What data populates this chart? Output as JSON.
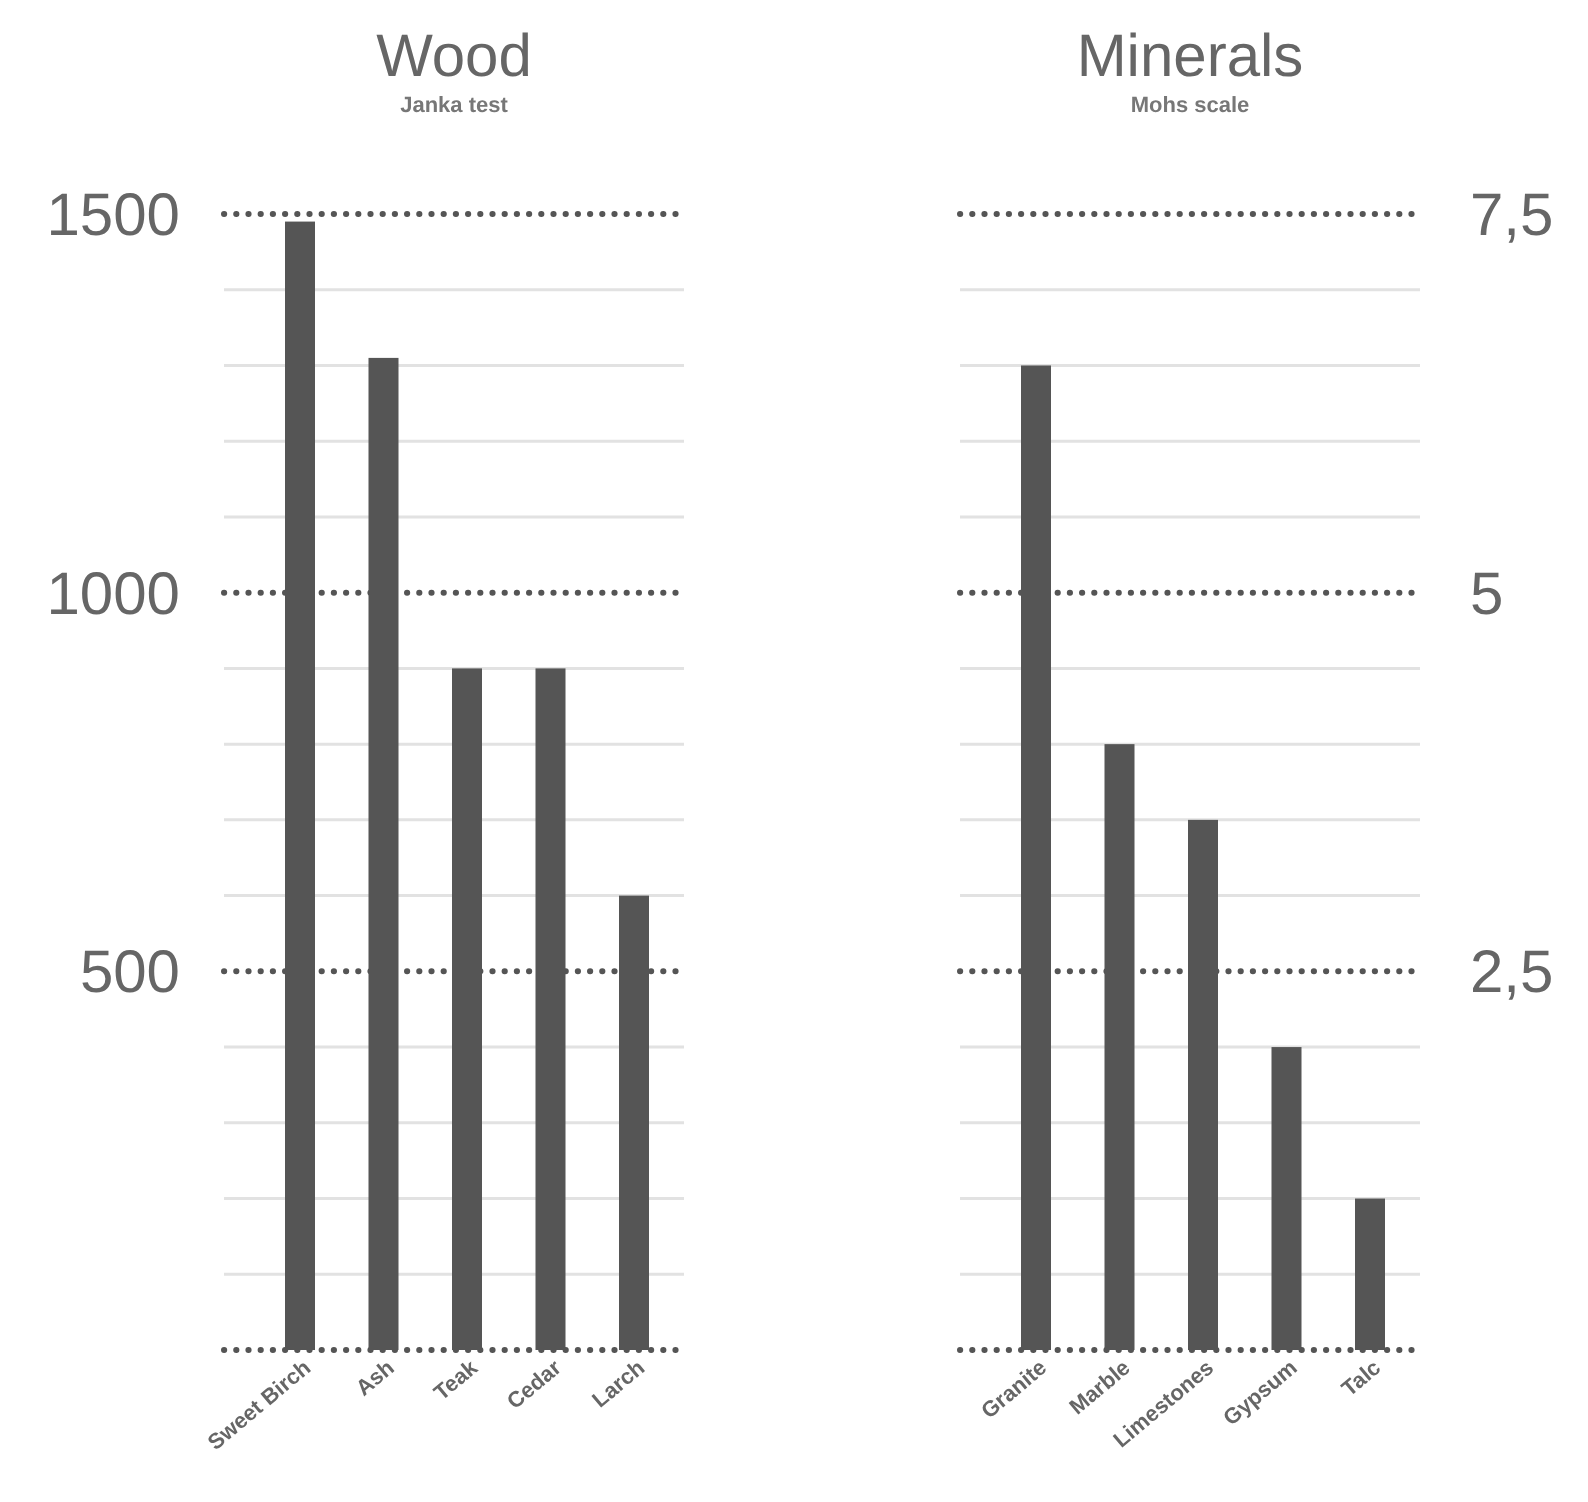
{
  "chart_data": [
    {
      "type": "bar",
      "title": "Wood",
      "subtitle": "Janka test",
      "categories": [
        "Sweet Birch",
        "Ash",
        "Teak",
        "Cedar",
        "Larch"
      ],
      "series": [
        {
          "color": "#555555",
          "values": [
            1490,
            1310,
            900,
            900,
            600
          ]
        }
      ],
      "ylim": [
        0,
        1500
      ],
      "yticks": [
        {
          "value": 0,
          "label": null
        },
        {
          "value": 100,
          "label": null
        },
        {
          "value": 200,
          "label": null
        },
        {
          "value": 300,
          "label": null
        },
        {
          "value": 400,
          "label": null
        },
        500,
        {
          "value": 600,
          "label": null
        },
        {
          "value": 700,
          "label": null
        },
        {
          "value": 800,
          "label": null
        },
        {
          "value": 900,
          "label": null
        },
        1000,
        {
          "value": 1100,
          "label": null
        },
        {
          "value": 1200,
          "label": null
        },
        {
          "value": 1300,
          "label": null
        },
        {
          "value": 1400,
          "label": null
        },
        1500
      ],
      "grid": true
    },
    {
      "type": "bar",
      "title": "Minerals",
      "subtitle": "Mohs scale",
      "categories": [
        "Granite",
        "Marble",
        "Limestones",
        "Gypsum",
        "Talc"
      ],
      "series": [
        {
          "color": "#555555",
          "values": [
            6.5,
            4,
            3.5,
            2,
            1
          ],
          "axis": "y2"
        }
      ],
      "y2lim": [
        0,
        7.5
      ],
      "y2ticks": [
        {
          "value": 0,
          "label": null
        },
        {
          "value": 0.5,
          "label": null
        },
        {
          "value": 1,
          "label": null
        },
        {
          "value": 1.5,
          "label": null
        },
        {
          "value": 2,
          "label": null
        },
        {
          "value": 2.5,
          "label": "2,5"
        },
        {
          "value": 3,
          "label": null
        },
        {
          "value": 3.5,
          "label": null
        },
        {
          "value": 4,
          "label": null
        },
        {
          "value": 4.5,
          "label": null
        },
        5,
        {
          "value": 5.5,
          "label": null
        },
        {
          "value": 6,
          "label": null
        },
        {
          "value": 6.5,
          "label": null
        },
        {
          "value": 7,
          "label": null
        },
        {
          "value": 7.5,
          "label": "7,5"
        }
      ],
      "grid": true
    }
  ]
}
